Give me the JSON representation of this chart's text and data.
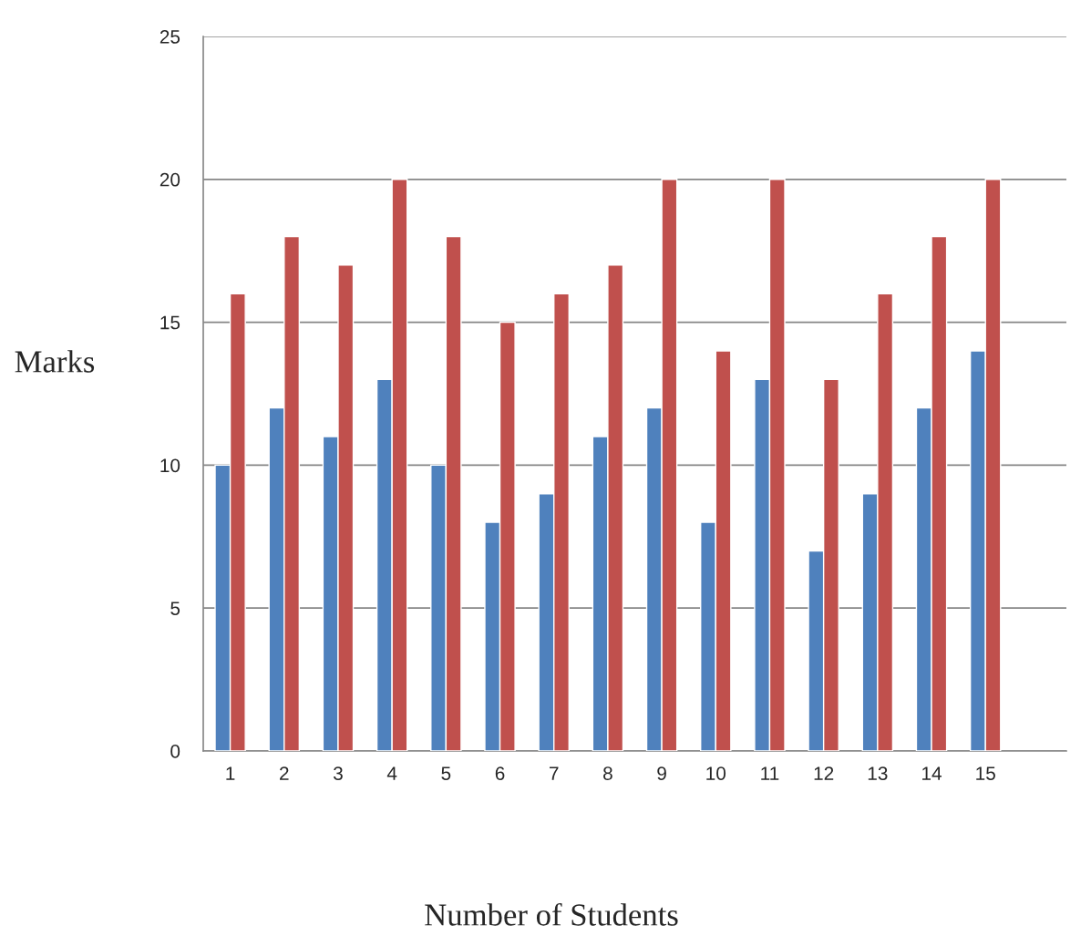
{
  "chart_data": {
    "type": "bar",
    "xlabel": "Number of Students",
    "ylabel": "Marks",
    "categories": [
      "1",
      "2",
      "3",
      "4",
      "5",
      "6",
      "7",
      "8",
      "9",
      "10",
      "11",
      "12",
      "13",
      "14",
      "15",
      null
    ],
    "series": [
      {
        "color": "#4f81bd",
        "values": [
          10,
          12,
          11,
          13,
          10,
          8,
          9,
          11,
          12,
          8,
          13,
          7,
          9,
          12,
          14,
          null
        ]
      },
      {
        "color": "#c0504d",
        "values": [
          16,
          18,
          17,
          20,
          18,
          15,
          16,
          17,
          20,
          14,
          20,
          13,
          16,
          18,
          20,
          null
        ]
      }
    ],
    "ylim": [
      0,
      25
    ],
    "yticks": [
      0,
      5,
      10,
      15,
      20,
      25
    ],
    "grid": "y",
    "legend": false
  }
}
